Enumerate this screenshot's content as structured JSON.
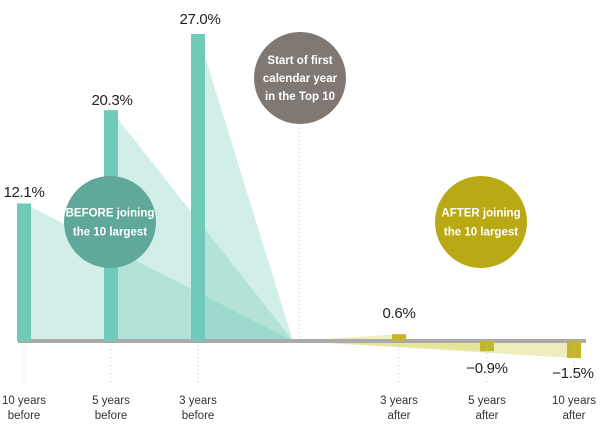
{
  "chart_data": {
    "type": "bar",
    "title": "",
    "xlabel": "",
    "ylabel": "",
    "ylim": [
      -1.5,
      27.0
    ],
    "categories": [
      "10 years before",
      "5 years before",
      "3 years before",
      "3 years after",
      "5 years after",
      "10 years after"
    ],
    "tick_lines": [
      [
        "10 years",
        "before"
      ],
      [
        "5 years",
        "before"
      ],
      [
        "3 years",
        "before"
      ],
      [
        "3 years",
        "after"
      ],
      [
        "5 years",
        "after"
      ],
      [
        "10 years",
        "after"
      ]
    ],
    "values": [
      12.1,
      20.3,
      27.0,
      0.6,
      -0.9,
      -1.5
    ],
    "value_labels": [
      "12.1%",
      "20.3%",
      "27.0%",
      "0.6%",
      "−0.9%",
      "−1.5%"
    ],
    "annotations": {
      "before": [
        "BEFORE joining",
        "the 10 largest"
      ],
      "start": [
        "Start of first",
        "calendar year",
        "in the Top 10"
      ],
      "after": [
        "AFTER joining",
        "the 10 largest"
      ]
    },
    "colors": {
      "before_bar": "#6fcab8",
      "before_fill": "#6fcab8",
      "before_circle": "#5fa89a",
      "after_bar": "#c2b62a",
      "after_fill": "#dcd66f",
      "after_circle": "#b8a915",
      "start_circle": "#807873",
      "axis": "#aaaaaa"
    }
  }
}
